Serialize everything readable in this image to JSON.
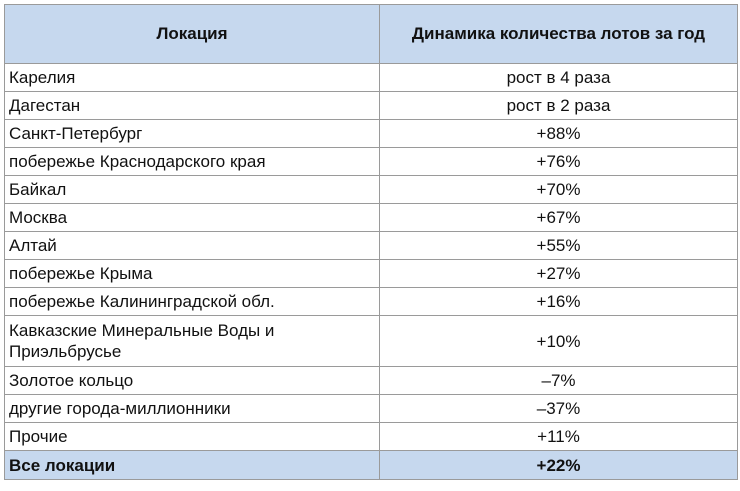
{
  "table": {
    "headers": [
      "Локация",
      "Динамика количества лотов за год"
    ],
    "rows": [
      {
        "location": "Карелия",
        "change": "рост в 4 раза"
      },
      {
        "location": "Дагестан",
        "change": "рост в 2 раза"
      },
      {
        "location": "Санкт-Петербург",
        "change": "+88%"
      },
      {
        "location": "побережье Краснодарского края",
        "change": "+76%"
      },
      {
        "location": "Байкал",
        "change": "+70%"
      },
      {
        "location": "Москва",
        "change": "+67%"
      },
      {
        "location": "Алтай",
        "change": "+55%"
      },
      {
        "location": "побережье Крыма",
        "change": "+27%"
      },
      {
        "location": "побережье Калининградской обл.",
        "change": "+16%"
      },
      {
        "location": "Кавказские Минеральные Воды и Приэльбрусье",
        "change": "+10%"
      },
      {
        "location": "Золотое кольцо",
        "change": "–7%"
      },
      {
        "location": "другие города-миллионники",
        "change": "–37%"
      },
      {
        "location": "Прочие",
        "change": "+11%"
      }
    ],
    "total": {
      "location": "Все локации",
      "change": "+22%"
    }
  },
  "colors": {
    "header_bg": "#c6d8ee",
    "border": "#9a9a9a"
  }
}
